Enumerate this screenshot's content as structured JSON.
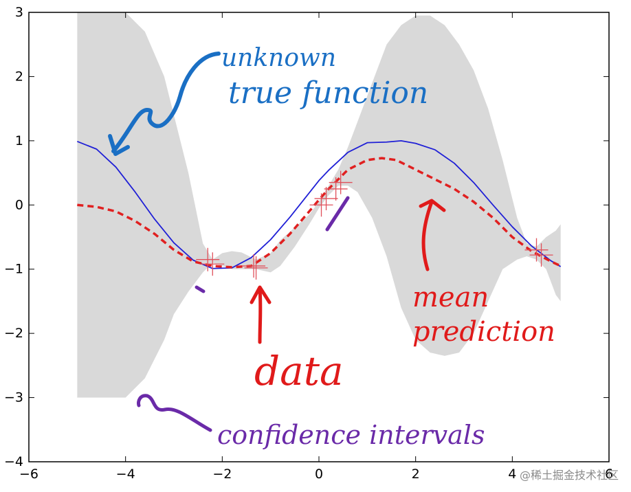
{
  "chart_data": {
    "type": "line",
    "xlim": [
      -6,
      6
    ],
    "ylim": [
      -4,
      3
    ],
    "xticks": [
      -6,
      -4,
      -2,
      0,
      2,
      4,
      6
    ],
    "yticks": [
      -4,
      -3,
      -2,
      -1,
      0,
      1,
      2,
      3
    ],
    "xtick_labels": [
      "−6",
      "−4",
      "−2",
      "0",
      "2",
      "4",
      "6"
    ],
    "ytick_labels": [
      "−4",
      "−3",
      "−2",
      "−1",
      "0",
      "1",
      "2",
      "3"
    ],
    "grid": false,
    "confidence_band": {
      "x": [
        -5.0,
        -4.5,
        -4.0,
        -3.6,
        -3.2,
        -3.0,
        -2.7,
        -2.4,
        -2.2,
        -2.0,
        -1.8,
        -1.6,
        -1.3,
        -1.0,
        -0.8,
        -0.5,
        -0.2,
        0.0,
        0.2,
        0.4,
        0.6,
        0.8,
        1.1,
        1.4,
        1.7,
        2.0,
        2.3,
        2.6,
        2.9,
        3.2,
        3.5,
        3.8,
        4.1,
        4.3,
        4.5,
        4.7,
        4.9,
        5.0
      ],
      "upper": [
        3.0,
        3.0,
        3.0,
        2.7,
        2.0,
        1.4,
        0.5,
        -0.6,
        -0.85,
        -0.75,
        -0.72,
        -0.74,
        -0.85,
        -0.75,
        -0.55,
        -0.35,
        -0.15,
        0.05,
        0.3,
        0.55,
        0.9,
        1.3,
        1.9,
        2.5,
        2.8,
        2.95,
        2.95,
        2.8,
        2.5,
        2.1,
        1.5,
        0.7,
        -0.2,
        -0.6,
        -0.65,
        -0.5,
        -0.4,
        -0.3
      ],
      "lower": [
        -3.0,
        -3.0,
        -3.0,
        -2.7,
        -2.1,
        -1.7,
        -1.35,
        -1.05,
        -0.9,
        -0.95,
        -1.0,
        -1.0,
        -1.0,
        -1.05,
        -0.95,
        -0.65,
        -0.3,
        -0.05,
        0.15,
        0.3,
        0.3,
        0.2,
        -0.2,
        -0.8,
        -1.6,
        -2.1,
        -2.3,
        -2.35,
        -2.3,
        -2.0,
        -1.5,
        -1.0,
        -0.85,
        -0.8,
        -0.85,
        -1.0,
        -1.4,
        -1.5
      ]
    },
    "series": [
      {
        "style": "solid",
        "color": "#1f1fd6",
        "x": [
          -5.0,
          -4.6,
          -4.2,
          -3.8,
          -3.4,
          -3.0,
          -2.6,
          -2.2,
          -1.8,
          -1.4,
          -1.0,
          -0.6,
          -0.2,
          0.0,
          0.2,
          0.6,
          1.0,
          1.4,
          1.7,
          2.0,
          2.4,
          2.8,
          3.2,
          3.6,
          4.0,
          4.4,
          4.8,
          5.0
        ],
        "y": [
          0.99,
          0.87,
          0.59,
          0.2,
          -0.22,
          -0.59,
          -0.86,
          -0.99,
          -0.98,
          -0.82,
          -0.54,
          -0.19,
          0.19,
          0.38,
          0.54,
          0.82,
          0.97,
          0.98,
          1.0,
          0.96,
          0.86,
          0.65,
          0.35,
          0.0,
          -0.34,
          -0.64,
          -0.87,
          -0.96
        ]
      },
      {
        "style": "dashed",
        "color": "#e02020",
        "x": [
          -5.0,
          -4.6,
          -4.2,
          -3.8,
          -3.4,
          -3.0,
          -2.6,
          -2.2,
          -1.8,
          -1.4,
          -1.0,
          -0.6,
          -0.2,
          0.0,
          0.2,
          0.6,
          1.0,
          1.3,
          1.6,
          2.0,
          2.4,
          2.8,
          3.2,
          3.6,
          4.0,
          4.4,
          4.8,
          5.0
        ],
        "y": [
          0.0,
          -0.03,
          -0.1,
          -0.25,
          -0.45,
          -0.7,
          -0.88,
          -0.95,
          -0.97,
          -0.95,
          -0.75,
          -0.45,
          -0.1,
          0.08,
          0.25,
          0.55,
          0.7,
          0.73,
          0.7,
          0.55,
          0.4,
          0.25,
          0.05,
          -0.2,
          -0.5,
          -0.72,
          -0.88,
          -0.95
        ]
      }
    ],
    "data_points": {
      "color": "#e0505a",
      "x": [
        -2.3,
        -2.2,
        -1.35,
        -1.3,
        0.05,
        0.15,
        0.35,
        0.45,
        4.5,
        4.6
      ],
      "y": [
        -0.85,
        -0.92,
        -0.95,
        -0.98,
        0.0,
        0.1,
        0.25,
        0.35,
        -0.7,
        -0.78
      ]
    },
    "annotations": [
      {
        "text": "unknown",
        "color": "#1a6fc4"
      },
      {
        "text": "true function",
        "color": "#1a6fc4"
      },
      {
        "text": "mean",
        "color": "#e01a1a"
      },
      {
        "text": "prediction",
        "color": "#e01a1a"
      },
      {
        "text": "data",
        "color": "#e01a1a"
      },
      {
        "text": "confidence intervals",
        "color": "#6a2aa8"
      }
    ]
  },
  "watermark": "@稀土掘金技术社区"
}
